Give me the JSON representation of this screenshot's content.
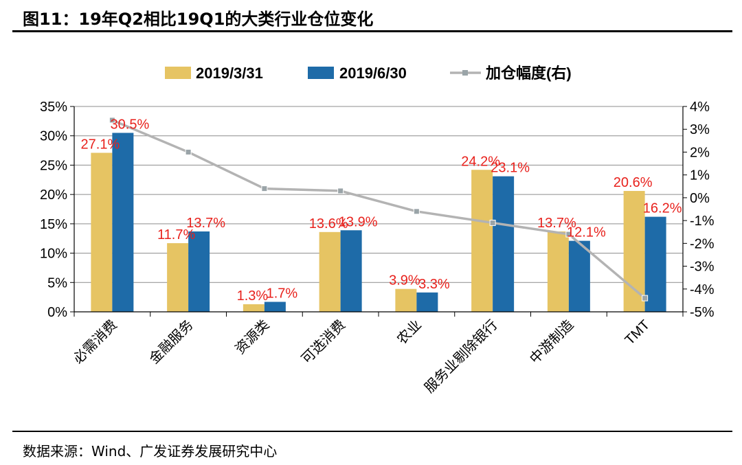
{
  "figure": {
    "title": "图11：19年Q2相比19Q1的大类行业仓位变化",
    "source": "数据来源：Wind、广发证券发展研究中心"
  },
  "colors": {
    "series1": "#e6c463",
    "series2": "#1e6ba8",
    "line": "#b3b3b3",
    "line_marker": "#9aa4a8",
    "label": "#e8211c",
    "axis": "#000000"
  },
  "chart_data": {
    "type": "bar",
    "title": "",
    "categories": [
      "必需消费",
      "金融服务",
      "资源类",
      "可选消费",
      "农业",
      "服务业剔除银行",
      "中游制造",
      "TMT"
    ],
    "series": [
      {
        "name": "2019/3/31",
        "values": [
          27.1,
          11.7,
          1.3,
          13.6,
          3.9,
          24.2,
          13.7,
          20.6
        ],
        "labels": [
          "27.1%",
          "11.7%",
          "1.3%",
          "13.6%",
          "3.9%",
          "24.2%",
          "13.7%",
          "20.6%"
        ]
      },
      {
        "name": "2019/6/30",
        "values": [
          30.5,
          13.7,
          1.7,
          13.9,
          3.3,
          23.1,
          12.1,
          16.2
        ],
        "labels": [
          "30.5%",
          "13.7%",
          "1.7%",
          "13.9%",
          "3.3%",
          "23.1%",
          "12.1%",
          "16.2%"
        ]
      },
      {
        "name": "加仓幅度(右)",
        "type": "line",
        "axis": "right",
        "values": [
          3.4,
          2.0,
          0.4,
          0.3,
          -0.6,
          -1.1,
          -1.6,
          -4.4
        ]
      }
    ],
    "y_left": {
      "lim": [
        0,
        35
      ],
      "ticks": [
        "0%",
        "5%",
        "10%",
        "15%",
        "20%",
        "25%",
        "30%",
        "35%"
      ]
    },
    "y_right": {
      "lim": [
        -5,
        4
      ],
      "ticks": [
        "-5%",
        "-4%",
        "-3%",
        "-2%",
        "-1%",
        "0%",
        "1%",
        "2%",
        "3%",
        "4%"
      ]
    },
    "grid": true,
    "legend": "top"
  }
}
